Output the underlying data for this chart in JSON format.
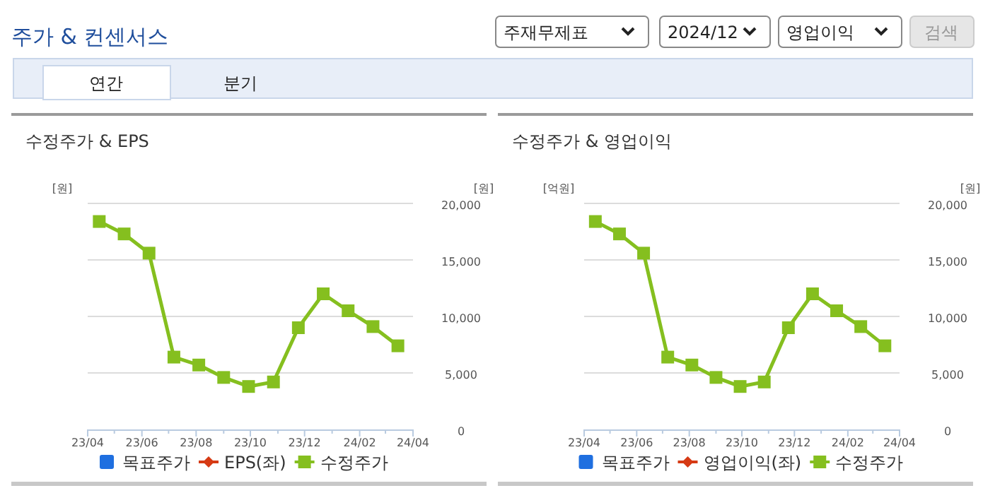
{
  "chart_data": [
    {
      "type": "other",
      "title": "주가 & 컨센서스",
      "annotations": [
        "주재무제표",
        "2024/12",
        "영업이익",
        "검색",
        "연간",
        "분기"
      ]
    },
    {
      "type": "line",
      "title": "수정주가 & EPS",
      "ylabel": "[원]",
      "y2label": "[원]",
      "x": [
        "2023-04-14",
        "2023-05-12",
        "2023-06-09",
        "2023-07-07",
        "2023-08-04",
        "2023-09-01",
        "2023-09-29",
        "2023-10-27",
        "2023-11-24",
        "2023-12-22",
        "2024-01-19",
        "2024-02-16",
        "2024-03-15"
      ],
      "xlim": [
        "2023-04",
        "2024-04"
      ],
      "xticks": [
        {
          "value": "2023-04",
          "label": "23/04"
        },
        {
          "value": "2023-05",
          "label": null
        },
        {
          "value": "2023-06",
          "label": "23/06"
        },
        {
          "value": "2023-07",
          "label": null
        },
        {
          "value": "2023-08",
          "label": "23/08"
        },
        {
          "value": "2023-09",
          "label": null
        },
        {
          "value": "2023-10",
          "label": "23/10"
        },
        {
          "value": "2023-11",
          "label": null
        },
        {
          "value": "2023-12",
          "label": "23/12"
        },
        {
          "value": "2024-01",
          "label": null
        },
        {
          "value": "2024-02",
          "label": "24/02"
        },
        {
          "value": "2024-03",
          "label": null
        },
        {
          "value": "2024-04",
          "label": "24/04"
        }
      ],
      "y2lim": [
        0,
        20000
      ],
      "y2ticks": [
        {
          "value": 0,
          "label": "0"
        },
        {
          "value": 5000,
          "label": "5,000"
        },
        {
          "value": 10000,
          "label": "10,000"
        },
        {
          "value": 15000,
          "label": "15,000"
        },
        {
          "value": 20000,
          "label": "20,000"
        }
      ],
      "grid": "y",
      "legend": "bottom",
      "marker": "square",
      "series": [
        {
          "name": "목표주가",
          "color": "#1f6fe0",
          "type": "bar",
          "values": [
            null,
            null,
            null,
            null,
            null,
            null,
            null,
            null,
            null,
            null,
            null,
            null,
            null
          ]
        },
        {
          "name": "EPS(좌)",
          "color": "#d63a14",
          "marker": "diamond",
          "values": [
            null,
            null,
            null,
            null,
            null,
            null,
            null,
            null,
            null,
            null,
            null,
            null,
            null
          ]
        },
        {
          "name": "수정주가",
          "color": "#85bf1f",
          "axis": "y2",
          "values": [
            18400,
            17300,
            15600,
            6400,
            5700,
            4600,
            3800,
            4200,
            9000,
            12000,
            10500,
            9100,
            7400
          ]
        }
      ]
    },
    {
      "type": "line",
      "title": "수정주가 & 영업이익",
      "ylabel": "[억원]",
      "y2label": "[원]",
      "x": [
        "2023-04-14",
        "2023-05-12",
        "2023-06-09",
        "2023-07-07",
        "2023-08-04",
        "2023-09-01",
        "2023-09-29",
        "2023-10-27",
        "2023-11-24",
        "2023-12-22",
        "2024-01-19",
        "2024-02-16",
        "2024-03-15"
      ],
      "xlim": [
        "2023-04",
        "2024-04"
      ],
      "xticks": [
        {
          "value": "2023-04",
          "label": "23/04"
        },
        {
          "value": "2023-05",
          "label": null
        },
        {
          "value": "2023-06",
          "label": "23/06"
        },
        {
          "value": "2023-07",
          "label": null
        },
        {
          "value": "2023-08",
          "label": "23/08"
        },
        {
          "value": "2023-09",
          "label": null
        },
        {
          "value": "2023-10",
          "label": "23/10"
        },
        {
          "value": "2023-11",
          "label": null
        },
        {
          "value": "2023-12",
          "label": "23/12"
        },
        {
          "value": "2024-01",
          "label": null
        },
        {
          "value": "2024-02",
          "label": "24/02"
        },
        {
          "value": "2024-03",
          "label": null
        },
        {
          "value": "2024-04",
          "label": "24/04"
        }
      ],
      "y2lim": [
        0,
        20000
      ],
      "y2ticks": [
        {
          "value": 0,
          "label": "0"
        },
        {
          "value": 5000,
          "label": "5,000"
        },
        {
          "value": 10000,
          "label": "10,000"
        },
        {
          "value": 15000,
          "label": "15,000"
        },
        {
          "value": 20000,
          "label": "20,000"
        }
      ],
      "grid": "y",
      "legend": "bottom",
      "marker": "square",
      "series": [
        {
          "name": "목표주가",
          "color": "#1f6fe0",
          "type": "bar",
          "values": [
            null,
            null,
            null,
            null,
            null,
            null,
            null,
            null,
            null,
            null,
            null,
            null,
            null
          ]
        },
        {
          "name": "영업이익(좌)",
          "color": "#d63a14",
          "marker": "diamond",
          "values": [
            null,
            null,
            null,
            null,
            null,
            null,
            null,
            null,
            null,
            null,
            null,
            null,
            null
          ]
        },
        {
          "name": "수정주가",
          "color": "#85bf1f",
          "axis": "y2",
          "values": [
            18400,
            17300,
            15600,
            6400,
            5700,
            4600,
            3800,
            4200,
            9000,
            12000,
            10500,
            9100,
            7400
          ]
        }
      ]
    }
  ]
}
